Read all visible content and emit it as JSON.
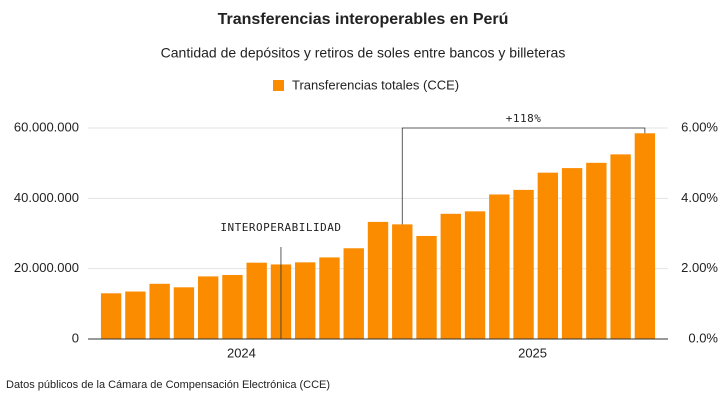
{
  "chart_data": {
    "type": "bar",
    "title": "Transferencias interoperables en Perú",
    "subtitle": "Cantidad de depósitos y retiros de soles entre bancos y billeteras",
    "source": "Datos públicos de la Cámara de Compensación Electrónica (CCE)",
    "categories": [
      null,
      null,
      null,
      null,
      null,
      "2024",
      null,
      null,
      null,
      null,
      null,
      null,
      null,
      null,
      null,
      null,
      null,
      "2025",
      null,
      null,
      null,
      null,
      null
    ],
    "series": [
      {
        "name": "Transferencias totales (CCE)",
        "color": "#fb8c00",
        "values": [
          13000000,
          13500000,
          15700000,
          14700000,
          17800000,
          18200000,
          21700000,
          21200000,
          21800000,
          23200000,
          25800000,
          33300000,
          32600000,
          29300000,
          35600000,
          36300000,
          41100000,
          42400000,
          47300000,
          48600000,
          50100000,
          52500000,
          58500000
        ]
      }
    ],
    "annotations": [
      "INTEROPERABILIDAD",
      "+118%"
    ],
    "ylim": [
      0,
      60000000
    ],
    "yticks": [
      0,
      {
        "value": 20000000,
        "label": "20.000.000"
      },
      {
        "value": 40000000,
        "label": "40.000.000"
      },
      {
        "value": 60000000,
        "label": "60.000.000"
      }
    ],
    "y2lim": [
      0,
      6
    ],
    "y2ticks": [
      {
        "value": 0,
        "label": "0.0%"
      },
      {
        "value": 2,
        "label": "2.00%"
      },
      {
        "value": 4,
        "label": "4.00%"
      },
      {
        "value": 6,
        "label": "6.00%"
      }
    ],
    "grid": true
  }
}
